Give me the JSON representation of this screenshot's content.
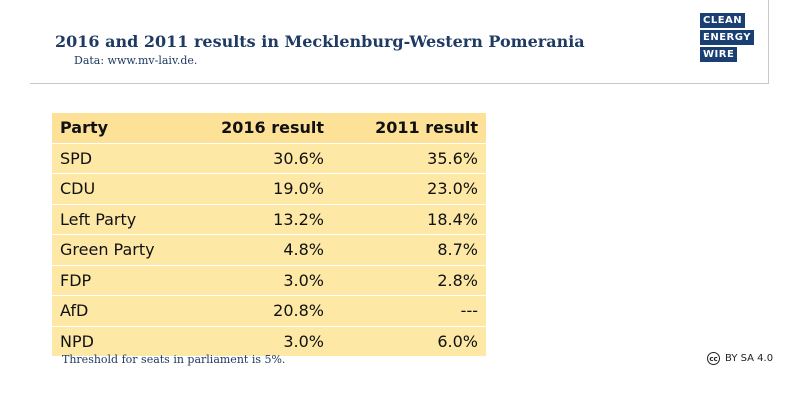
{
  "header": {
    "title": "2016 and 2011 results in Mecklenburg-Western Pomerania",
    "subtitle": "Data: www.mv-laiv.de."
  },
  "logo": {
    "lines": [
      "CLEAN",
      "ENERGY",
      "WIRE"
    ]
  },
  "table": {
    "columns": [
      "Party",
      "2016 result",
      "2011 result"
    ],
    "rows": [
      [
        "SPD",
        "30.6%",
        "35.6%"
      ],
      [
        "CDU",
        "19.0%",
        "23.0%"
      ],
      [
        "Left Party",
        "13.2%",
        "18.4%"
      ],
      [
        "Green Party",
        "4.8%",
        "8.7%"
      ],
      [
        "FDP",
        "3.0%",
        "2.8%"
      ],
      [
        "AfD",
        "20.8%",
        "---"
      ],
      [
        "NPD",
        "3.0%",
        "6.0%"
      ]
    ]
  },
  "footer": {
    "note": "Threshold for seats in parliament is 5%.",
    "cc_icon": "cc",
    "license": "BY SA 4.0"
  },
  "colors": {
    "title": "#1f3a63",
    "table_bg": "#fde8a6",
    "logo_bg": "#1a3f73"
  }
}
